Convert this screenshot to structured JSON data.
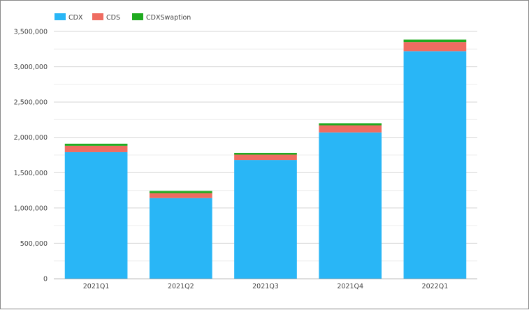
{
  "chart_data": {
    "type": "bar",
    "stacked": true,
    "categories": [
      "2021Q1",
      "2021Q2",
      "2021Q3",
      "2021Q4",
      "2022Q1"
    ],
    "series": [
      {
        "name": "CDX",
        "color": "#29b6f6",
        "values": [
          1790000,
          1140000,
          1680000,
          2070000,
          3220000
        ]
      },
      {
        "name": "CDS",
        "color": "#ef6c61",
        "values": [
          90000,
          70000,
          75000,
          100000,
          130000
        ]
      },
      {
        "name": "CDXSwaption",
        "color": "#1faa1f",
        "values": [
          30000,
          30000,
          25000,
          30000,
          35000
        ]
      }
    ],
    "ylim": [
      0,
      3500000
    ],
    "yticks": [
      "0",
      "500,000",
      "1,000,000",
      "1,500,000",
      "2,000,000",
      "2,500,000",
      "3,000,000",
      "3,500,000"
    ],
    "grid": true,
    "legend_position": "top-left"
  }
}
